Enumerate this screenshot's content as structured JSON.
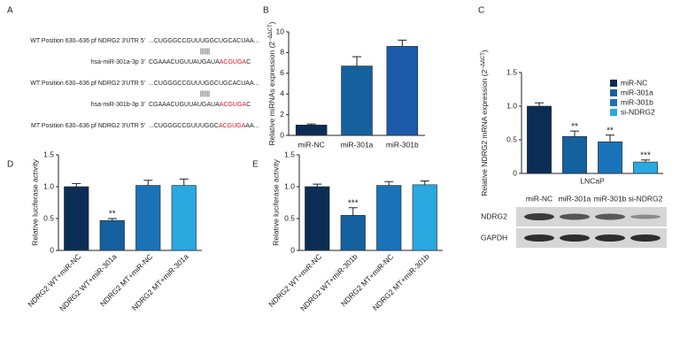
{
  "sequences": {
    "panel_label": "A",
    "rows": [
      {
        "label": "WT Position 630–636 pf NDRG2 3'UTR 5'",
        "segments": [
          {
            "text": "...CUGGGCCGUUUGGCUGCACUAA...",
            "color": "#222222"
          }
        ]
      },
      {
        "segments": [
          {
            "text": "||||||",
            "color": "#222222"
          }
        ]
      },
      {
        "label": "hsa-miR-301a-3p 3'",
        "segments": [
          {
            "text": "CGAAACUGUUAUGAUA",
            "color": "#222222"
          },
          {
            "text": "ACGUGA",
            "color": "#e0141e"
          },
          {
            "text": "C",
            "color": "#222222"
          }
        ]
      },
      {
        "label": "WT Position 630–636 pf NDRG2 3'UTR 5'",
        "segments": [
          {
            "text": "...CUGGGCCGUUUGGCUGCACUAA...",
            "color": "#222222"
          }
        ]
      },
      {
        "segments": [
          {
            "text": "||||||",
            "color": "#222222"
          }
        ]
      },
      {
        "label": "hsa-miR-301b-3p 3'",
        "segments": [
          {
            "text": "CGAAACUGUUAUGAUA",
            "color": "#222222"
          },
          {
            "text": "ACGUGA",
            "color": "#e0141e"
          },
          {
            "text": "C",
            "color": "#222222"
          }
        ]
      },
      {
        "label": "MT Position 630–636 pf NDRG2 3'UTR 5'",
        "segments": [
          {
            "text": "...CUGGGCCGUUUGGC",
            "color": "#222222"
          },
          {
            "text": "ACGUGA",
            "color": "#e0141e"
          },
          {
            "text": "AA...",
            "color": "#222222"
          }
        ]
      }
    ]
  },
  "chart_data": [
    {
      "type": "bar",
      "panel_label": "B",
      "ylabel": [
        "Relative miRNAs expression (2",
        "−ΔΔCT",
        ")"
      ],
      "categories": [
        "miR-NC",
        "miR-301a",
        "miR-301b"
      ],
      "values": [
        1.0,
        6.7,
        8.6
      ],
      "errors": [
        0.1,
        0.9,
        0.6
      ],
      "colors": [
        "#0b2d55",
        "#15609e",
        "#1d5cab"
      ],
      "ylim": [
        0,
        10
      ],
      "yticks": [
        0,
        2,
        4,
        6,
        8,
        10
      ]
    },
    {
      "type": "bar",
      "panel_label": "C",
      "ylabel": [
        "Relative NDRG2 mRNA expression (2",
        "−ΔΔCT",
        ")"
      ],
      "xlabel": "LNCaP",
      "categories": [
        "miR-NC",
        "miR-301a",
        "miR-301b",
        "si-NDRG2"
      ],
      "values": [
        1.0,
        0.55,
        0.47,
        0.17
      ],
      "errors": [
        0.05,
        0.08,
        0.1,
        0.03
      ],
      "annotations": [
        null,
        "**",
        "**",
        "***"
      ],
      "colors": [
        "#0b2d55",
        "#15609e",
        "#1a73b8",
        "#2aa8e0"
      ],
      "legend": "upper right",
      "ylim": [
        0,
        1.5
      ],
      "yticks": [
        0,
        0.5,
        {
          "value": 1,
          "label": "1.0"
        },
        1.5
      ]
    },
    {
      "type": "bar",
      "panel_label": "D",
      "ylabel": "Relative luciferase activity",
      "xtick_rotation": 45,
      "categories": [
        "NDRG2 WT+miR-NC",
        "NDRG2 WT+miR-301a",
        "NDRG2 MT+miR-NC",
        "NDRG2 MT+miR-301a"
      ],
      "values": [
        1.0,
        0.47,
        1.02,
        1.02
      ],
      "errors": [
        0.05,
        0.03,
        0.08,
        0.1
      ],
      "annotations": [
        null,
        "**",
        null,
        null
      ],
      "colors": [
        "#0b2d55",
        "#15609e",
        "#1a73b8",
        "#2aa8e0"
      ],
      "ylim": [
        0,
        1.5
      ],
      "yticks": [
        0,
        0.5,
        {
          "value": 1,
          "label": "1.0"
        },
        1.5
      ]
    },
    {
      "type": "bar",
      "panel_label": "E",
      "ylabel": "Relative luciferase activity",
      "xtick_rotation": 45,
      "categories": [
        "NDRG2 WT+miR-NC",
        "NDRG2 WT+miR-301b",
        "NDRG2 MT+miR-NC",
        "NDRG2 MT+miR-301b"
      ],
      "values": [
        1.0,
        0.55,
        1.02,
        1.03
      ],
      "errors": [
        0.04,
        0.12,
        0.06,
        0.06
      ],
      "annotations": [
        null,
        "***",
        null,
        null
      ],
      "colors": [
        "#0b2d55",
        "#15609e",
        "#1a73b8",
        "#2aa8e0"
      ],
      "ylim": [
        0,
        1.5
      ],
      "yticks": [
        0,
        0.5,
        {
          "value": 1,
          "label": "1.0"
        },
        1.5
      ]
    }
  ],
  "blot": {
    "columns": [
      "miR-NC",
      "miR-301a",
      "miR-301b",
      "si-NDRG2"
    ],
    "rows": [
      "NDRG2",
      "GAPDH"
    ]
  }
}
